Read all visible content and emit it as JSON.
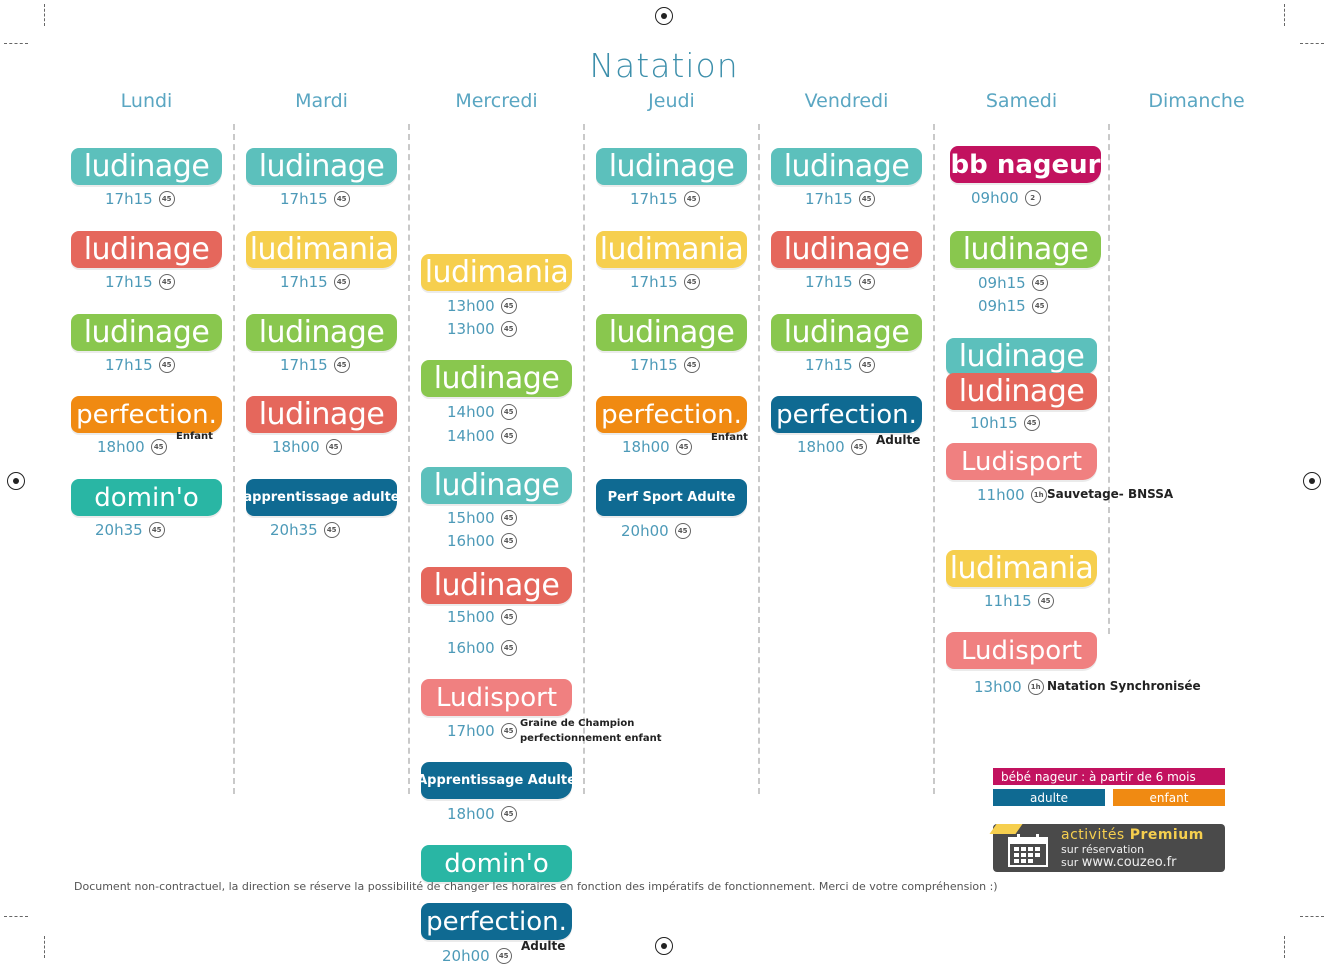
{
  "title": "Natation",
  "days": [
    "Lundi",
    "Mardi",
    "Mercredi",
    "Jeudi",
    "Vendredi",
    "Samedi",
    "Dimanche"
  ],
  "activities": {
    "ludinage": "ludinage",
    "ludimania": "ludimania",
    "perfection": "perfection.",
    "domino": "domin'o",
    "ludisport": "Ludisport",
    "bbnageur": "bb nageur",
    "apprentissage_adulte_lower": "apprentissage adulte",
    "apprentissage_adulte": "Apprentissage Adulte",
    "perf_sport_adulte": "Perf Sport Adulte"
  },
  "badges": {
    "b45": "45",
    "b1h": "1h",
    "b2": "2"
  },
  "times": {
    "t1715": "17h15",
    "t1800": "18h00",
    "t2035": "20h35",
    "t1300": "13h00",
    "t1400": "14h00",
    "t1500": "15h00",
    "t1600": "16h00",
    "t1700": "17h00",
    "t2000": "20h00",
    "t0900": "09h00",
    "t0915": "09h15",
    "t1015": "10h15",
    "t1100": "11h00",
    "t1115": "11h15"
  },
  "notes": {
    "enfant": "Enfant",
    "adulte": "Adulte",
    "sauvetage": "Sauvetage- BNSSA",
    "graine_1": "Graine de Champion",
    "graine_2": "perfectionnement enfant",
    "synchro": "Natation Synchronisée"
  },
  "legend": {
    "bebe": "bébé nageur : à partir de 6 mois",
    "adulte": "adulte",
    "enfant": "enfant"
  },
  "premium": {
    "line1": "activités",
    "line1_bold": "Premium",
    "line2": "sur réservation",
    "line3_prefix": "sur",
    "url": "www.couzeo.fr"
  },
  "footer": "Document non-contractuel, la direction se réserve la possibilité de changer les horaires en fonction des impératifs de fonctionnement. Merci de votre compréhension :)",
  "colors": {
    "teal": "#5cc0bc",
    "red": "#e5675c",
    "green": "#89c74e",
    "orange": "#f08a12",
    "turquoise": "#29b6a4",
    "yellow": "#f6cf4e",
    "navy": "#0f6a92",
    "salmon": "#f08080",
    "magenta": "#c2125f"
  }
}
